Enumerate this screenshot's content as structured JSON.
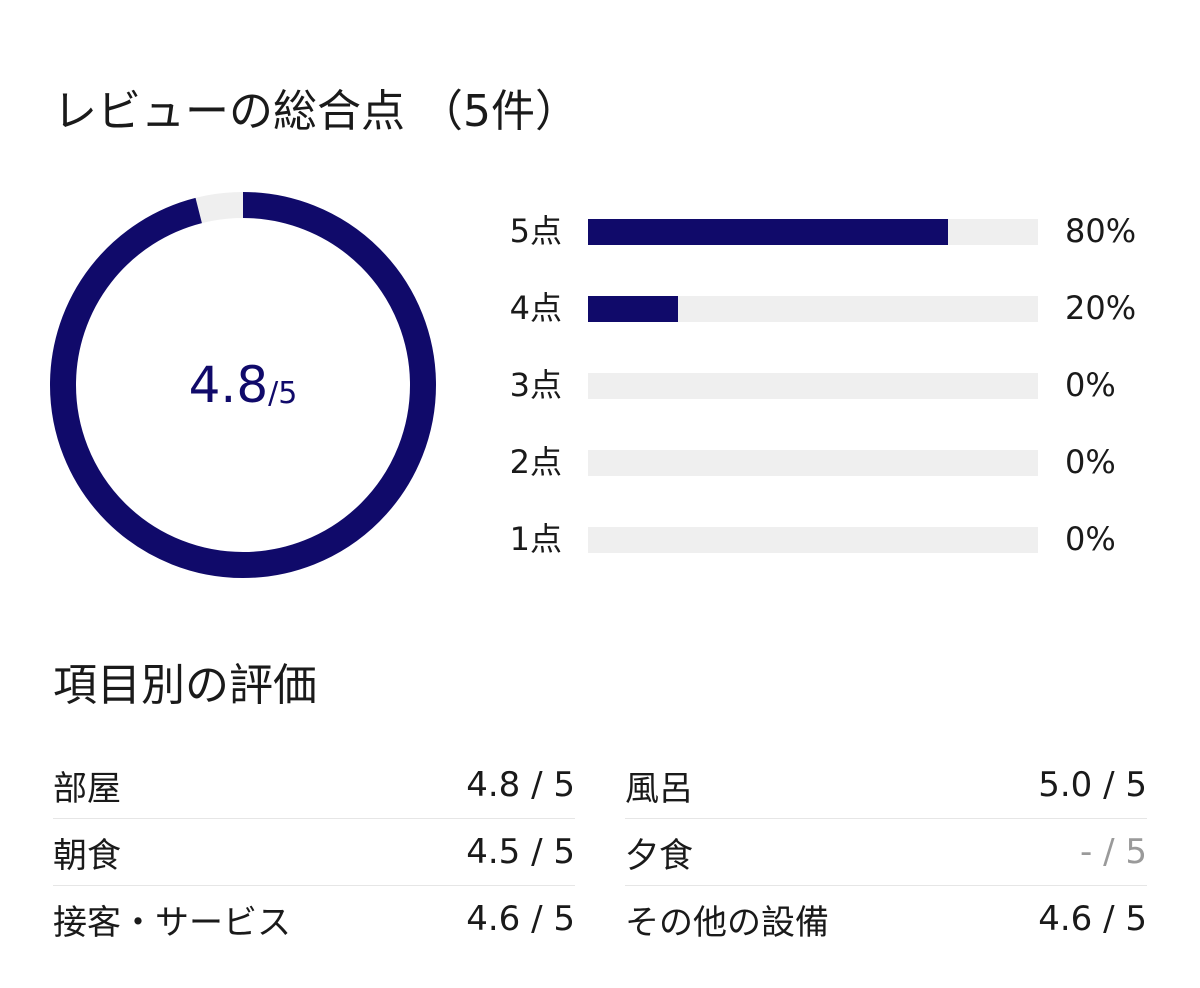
{
  "overall": {
    "title": "レビューの総合点 （5件）",
    "score": "4.8",
    "score_denominator": "/5",
    "score_fraction": 0.96,
    "accent_color": "#100a6a",
    "track_color": "#efefef"
  },
  "distribution": [
    {
      "label": "5点",
      "percent_text": "80%",
      "fraction": 0.8
    },
    {
      "label": "4点",
      "percent_text": "20%",
      "fraction": 0.2
    },
    {
      "label": "3点",
      "percent_text": "0%",
      "fraction": 0.0
    },
    {
      "label": "2点",
      "percent_text": "0%",
      "fraction": 0.0
    },
    {
      "label": "1点",
      "percent_text": "0%",
      "fraction": 0.0
    }
  ],
  "categories": {
    "title": "項目別の評価",
    "items": [
      {
        "label": "部屋",
        "value": "4.8 / 5"
      },
      {
        "label": "風呂",
        "value": "5.0 / 5"
      },
      {
        "label": "朝食",
        "value": "4.5 / 5"
      },
      {
        "label": "夕食",
        "value": "- / 5",
        "muted": true
      },
      {
        "label": "接客・サービス",
        "value": "4.6 / 5"
      },
      {
        "label": "その他の設備",
        "value": "4.6 / 5"
      }
    ]
  }
}
